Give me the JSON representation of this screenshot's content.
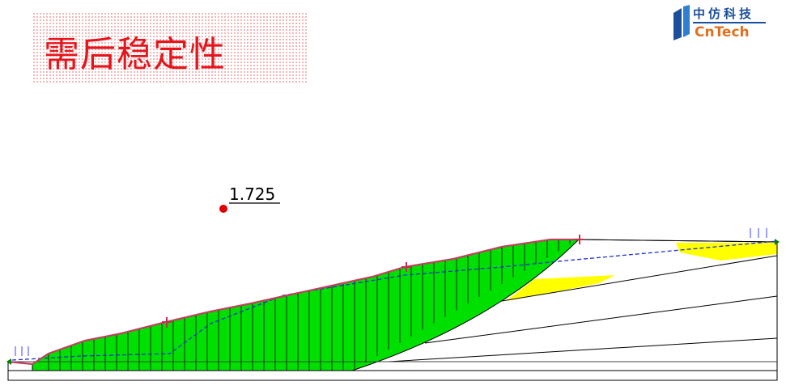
{
  "header": {
    "title": "需后稳定性",
    "logo_cn": "中仿科技",
    "logo_en": "CnTech"
  },
  "diagram": {
    "safety_factor": "1.725"
  }
}
